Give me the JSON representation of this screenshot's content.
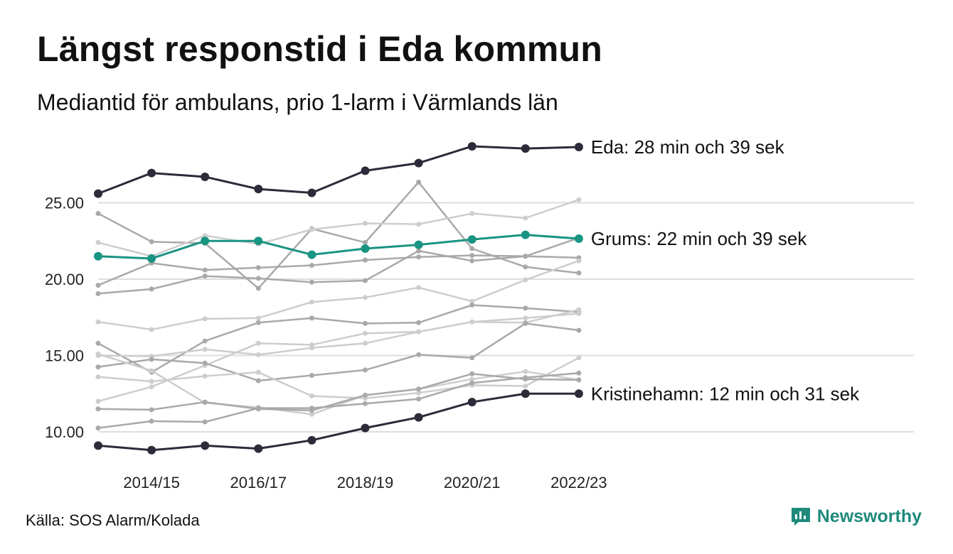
{
  "title": "Längst responstid i Eda kommun",
  "subtitle": "Mediantid för ambulans, prio 1-larm i Värmlands län",
  "source": "Källa: SOS Alarm/Kolada",
  "brand": "Newsworthy",
  "colors": {
    "dark": "#2b2b3a",
    "teal": "#1a9482",
    "gray": "#a9a9a9",
    "lightgray": "#cdcdcd",
    "grid": "#dddddd",
    "brand": "#1f8a7c"
  },
  "chart_data": {
    "type": "line",
    "x": [
      "2013/14",
      "2014/15",
      "2015/16",
      "2016/17",
      "2017/18",
      "2018/19",
      "2019/20",
      "2020/21",
      "2021/22",
      "2022/23"
    ],
    "tick_labels": [
      "2014/15",
      "2016/17",
      "2018/19",
      "2020/21",
      "2022/23"
    ],
    "yticks": [
      "10.00",
      "15.00",
      "20.00",
      "25.00"
    ],
    "ylim": [
      9.0,
      28.9
    ],
    "grid": true,
    "highlighted": [
      {
        "name": "Eda",
        "label": "Eda: 28 min och 39 sek",
        "color": "dark",
        "values": [
          25.6,
          26.95,
          26.7,
          25.9,
          25.65,
          27.1,
          27.6,
          28.7,
          28.55,
          28.65
        ]
      },
      {
        "name": "Grums",
        "label": "Grums: 22 min och 39 sek",
        "color": "teal",
        "values": [
          21.5,
          21.35,
          22.5,
          22.5,
          21.6,
          22.0,
          22.25,
          22.6,
          22.9,
          22.65
        ]
      },
      {
        "name": "Kristinehamn",
        "label": "Kristinehamn: 12 min och 31 sek",
        "color": "dark",
        "values": [
          9.1,
          8.8,
          9.1,
          8.9,
          9.45,
          10.25,
          10.95,
          11.95,
          12.5,
          12.5
        ]
      }
    ],
    "background": [
      {
        "color": "gray",
        "values": [
          24.3,
          22.45,
          22.35,
          19.4,
          23.3,
          22.4,
          26.35,
          22.0,
          20.8,
          20.4
        ]
      },
      {
        "color": "lightgray",
        "values": [
          22.4,
          21.5,
          22.85,
          22.3,
          23.25,
          23.65,
          23.6,
          24.3,
          24.0,
          25.2
        ]
      },
      {
        "color": "gray",
        "values": [
          19.6,
          21.05,
          20.6,
          20.75,
          20.9,
          21.25,
          21.45,
          21.55,
          21.5,
          21.4
        ]
      },
      {
        "color": "gray",
        "values": [
          19.05,
          19.35,
          20.2,
          20.05,
          19.8,
          19.9,
          21.85,
          21.2,
          21.5,
          22.7
        ]
      },
      {
        "color": "lightgray",
        "values": [
          17.2,
          16.7,
          17.4,
          17.45,
          18.5,
          18.8,
          19.45,
          18.55,
          19.95,
          21.2
        ]
      },
      {
        "color": "gray",
        "values": [
          15.8,
          13.9,
          15.95,
          17.15,
          17.45,
          17.1,
          17.15,
          18.3,
          18.1,
          17.85
        ]
      },
      {
        "color": "lightgray",
        "values": [
          15.0,
          14.95,
          15.4,
          15.05,
          15.5,
          15.8,
          16.55,
          17.2,
          17.15,
          18.0
        ]
      },
      {
        "color": "lightgray",
        "values": [
          12.0,
          12.95,
          14.35,
          15.8,
          15.7,
          16.45,
          16.55,
          17.2,
          17.45,
          17.75
        ]
      },
      {
        "color": "gray",
        "values": [
          14.25,
          14.75,
          14.5,
          13.35,
          13.7,
          14.05,
          15.05,
          14.85,
          17.1,
          16.65
        ]
      },
      {
        "color": "lightgray",
        "values": [
          13.6,
          13.3,
          13.65,
          13.9,
          12.35,
          12.2,
          12.55,
          13.05,
          13.0,
          14.85
        ]
      },
      {
        "color": "lightgray",
        "values": [
          15.1,
          14.0,
          11.9,
          11.6,
          11.15,
          12.4,
          12.8,
          13.45,
          13.95,
          13.4
        ]
      },
      {
        "color": "gray",
        "values": [
          11.5,
          11.45,
          11.95,
          11.5,
          11.4,
          12.4,
          12.8,
          13.8,
          13.45,
          13.4
        ]
      },
      {
        "color": "gray",
        "values": [
          10.25,
          10.7,
          10.65,
          11.55,
          11.55,
          11.85,
          12.15,
          13.2,
          13.55,
          13.85
        ]
      }
    ]
  }
}
